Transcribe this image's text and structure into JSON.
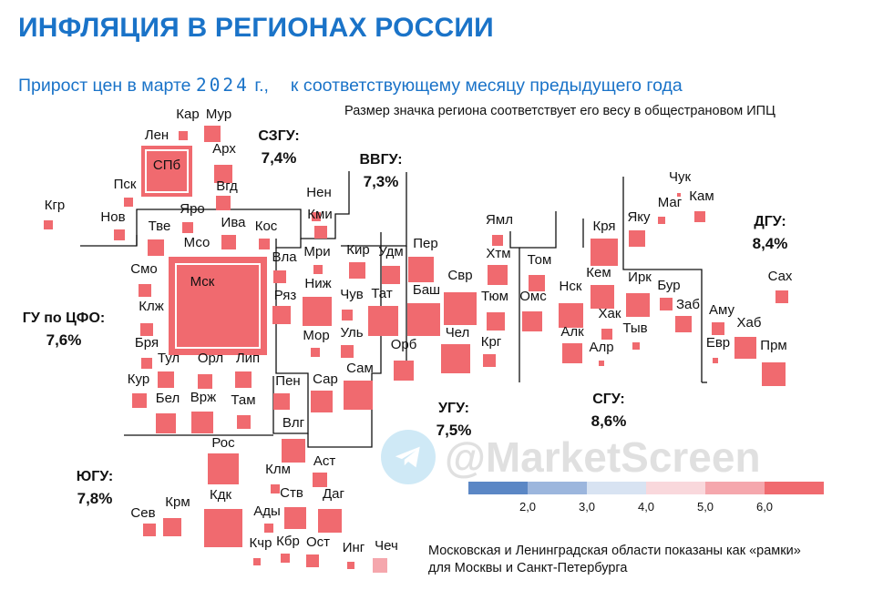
{
  "header": {
    "title": "ИНФЛЯЦИЯ В РЕГИОНАХ РОССИИ",
    "subtitle_part1": "Прирост цен в марте ",
    "subtitle_year": "2024",
    "subtitle_part2": " г.,",
    "subtitle_part3": "к соответствующему месяцу предыдущего года"
  },
  "notes": {
    "size_note": "Размер значка региона соответствует его весу в общестрановом ИПЦ",
    "frames_note_line1": "Московская и Ленинградская области показаны как «рамки»",
    "frames_note_line2": "для Москвы и Санкт-Петербурга"
  },
  "watermark": {
    "text": "@MarketScreen",
    "icon": "telegram-plane-icon"
  },
  "colors": {
    "title": "#1a73c8",
    "scale": [
      "#5b87c5",
      "#9cb6dd",
      "#d8e3f2",
      "#f9d8dc",
      "#f5a7ad",
      "#f06a6f"
    ],
    "region_fill": "#f06a6f",
    "region_light": "#f5a7ad",
    "frame_fill": "#ffffff",
    "border_line": "#111111"
  },
  "chart_data": {
    "type": "heatmap",
    "title": "ИНФЛЯЦИЯ В РЕГИОНАХ РОССИИ",
    "legend": {
      "placement": "bottom-right",
      "bins": [
        {
          "min": null,
          "max": 2.0
        },
        {
          "min": 2.0,
          "max": 3.0
        },
        {
          "min": 3.0,
          "max": 4.0
        },
        {
          "min": 4.0,
          "max": 5.0
        },
        {
          "min": 5.0,
          "max": 6.0
        },
        {
          "min": 6.0,
          "max": null
        }
      ],
      "tick_labels": [
        "2,0",
        "3,0",
        "4,0",
        "5,0",
        "6,0"
      ]
    },
    "districts": [
      {
        "name": "СЗГУ:",
        "value": "7,4%"
      },
      {
        "name": "ВВГУ:",
        "value": "7,3%"
      },
      {
        "name": "ГУ по ЦФО:",
        "value": "7,6%"
      },
      {
        "name": "ЮГУ:",
        "value": "7,8%"
      },
      {
        "name": "УГУ:",
        "value": "7,5%"
      },
      {
        "name": "СГУ:",
        "value": "8,6%"
      },
      {
        "name": "ДГУ:",
        "value": "8,4%"
      }
    ],
    "regions": [
      {
        "label": "Кар",
        "bin": 6
      },
      {
        "label": "Мур",
        "bin": 6
      },
      {
        "label": "Лен",
        "bin": 6
      },
      {
        "label": "СПб",
        "bin": 6
      },
      {
        "label": "Арх",
        "bin": 6
      },
      {
        "label": "Вгд",
        "bin": 6
      },
      {
        "label": "Кгр",
        "bin": 6
      },
      {
        "label": "Пск",
        "bin": 6
      },
      {
        "label": "Нов",
        "bin": 6
      },
      {
        "label": "Тве",
        "bin": 6
      },
      {
        "label": "Яро",
        "bin": 6
      },
      {
        "label": "Ива",
        "bin": 6
      },
      {
        "label": "Кос",
        "bin": 6
      },
      {
        "label": "Мсо",
        "bin": 6
      },
      {
        "label": "Смо",
        "bin": 6
      },
      {
        "label": "Мск",
        "bin": 6
      },
      {
        "label": "Вла",
        "bin": 6
      },
      {
        "label": "Клж",
        "bin": 6
      },
      {
        "label": "Ряз",
        "bin": 6
      },
      {
        "label": "Бря",
        "bin": 6
      },
      {
        "label": "Тул",
        "bin": 6
      },
      {
        "label": "Орл",
        "bin": 6
      },
      {
        "label": "Лип",
        "bin": 6
      },
      {
        "label": "Кур",
        "bin": 6
      },
      {
        "label": "Бел",
        "bin": 6
      },
      {
        "label": "Врж",
        "bin": 6
      },
      {
        "label": "Там",
        "bin": 6
      },
      {
        "label": "Нен",
        "bin": 6
      },
      {
        "label": "Кми",
        "bin": 6
      },
      {
        "label": "Мри",
        "bin": 6
      },
      {
        "label": "Кир",
        "bin": 6
      },
      {
        "label": "Удм",
        "bin": 6
      },
      {
        "label": "Ниж",
        "bin": 6
      },
      {
        "label": "Чув",
        "bin": 6
      },
      {
        "label": "Тат",
        "bin": 6
      },
      {
        "label": "Мор",
        "bin": 6
      },
      {
        "label": "Уль",
        "bin": 6
      },
      {
        "label": "Пен",
        "bin": 6
      },
      {
        "label": "Сар",
        "bin": 6
      },
      {
        "label": "Сам",
        "bin": 6
      },
      {
        "label": "Пер",
        "bin": 6
      },
      {
        "label": "Баш",
        "bin": 6
      },
      {
        "label": "Орб",
        "bin": 6
      },
      {
        "label": "Ямл",
        "bin": 6
      },
      {
        "label": "Хтм",
        "bin": 6
      },
      {
        "label": "Свр",
        "bin": 6
      },
      {
        "label": "Тюм",
        "bin": 6
      },
      {
        "label": "Чел",
        "bin": 6
      },
      {
        "label": "Крг",
        "bin": 6
      },
      {
        "label": "Том",
        "bin": 6
      },
      {
        "label": "Омс",
        "bin": 6
      },
      {
        "label": "Кря",
        "bin": 6
      },
      {
        "label": "Нск",
        "bin": 6
      },
      {
        "label": "Кем",
        "bin": 6
      },
      {
        "label": "Хак",
        "bin": 6
      },
      {
        "label": "Алк",
        "bin": 6
      },
      {
        "label": "Алр",
        "bin": 6
      },
      {
        "label": "Тыв",
        "bin": 6
      },
      {
        "label": "Ирк",
        "bin": 6
      },
      {
        "label": "Бур",
        "bin": 6
      },
      {
        "label": "Заб",
        "bin": 6
      },
      {
        "label": "Яку",
        "bin": 6
      },
      {
        "label": "Чук",
        "bin": 6
      },
      {
        "label": "Маг",
        "bin": 6
      },
      {
        "label": "Кам",
        "bin": 6
      },
      {
        "label": "Сах",
        "bin": 6
      },
      {
        "label": "Аму",
        "bin": 6
      },
      {
        "label": "Хаб",
        "bin": 6
      },
      {
        "label": "Евр",
        "bin": 6
      },
      {
        "label": "Прм",
        "bin": 6
      },
      {
        "label": "Влг",
        "bin": 6
      },
      {
        "label": "Рос",
        "bin": 6
      },
      {
        "label": "Клм",
        "bin": 6
      },
      {
        "label": "Аст",
        "bin": 6
      },
      {
        "label": "Сев",
        "bin": 6
      },
      {
        "label": "Крм",
        "bin": 6
      },
      {
        "label": "Кдк",
        "bin": 6
      },
      {
        "label": "Ады",
        "bin": 6
      },
      {
        "label": "Ств",
        "bin": 6
      },
      {
        "label": "Даг",
        "bin": 6
      },
      {
        "label": "Кчр",
        "bin": 6
      },
      {
        "label": "Кбр",
        "bin": 6
      },
      {
        "label": "Ост",
        "bin": 6
      },
      {
        "label": "Инг",
        "bin": 6
      },
      {
        "label": "Чеч",
        "bin": 5
      }
    ]
  }
}
